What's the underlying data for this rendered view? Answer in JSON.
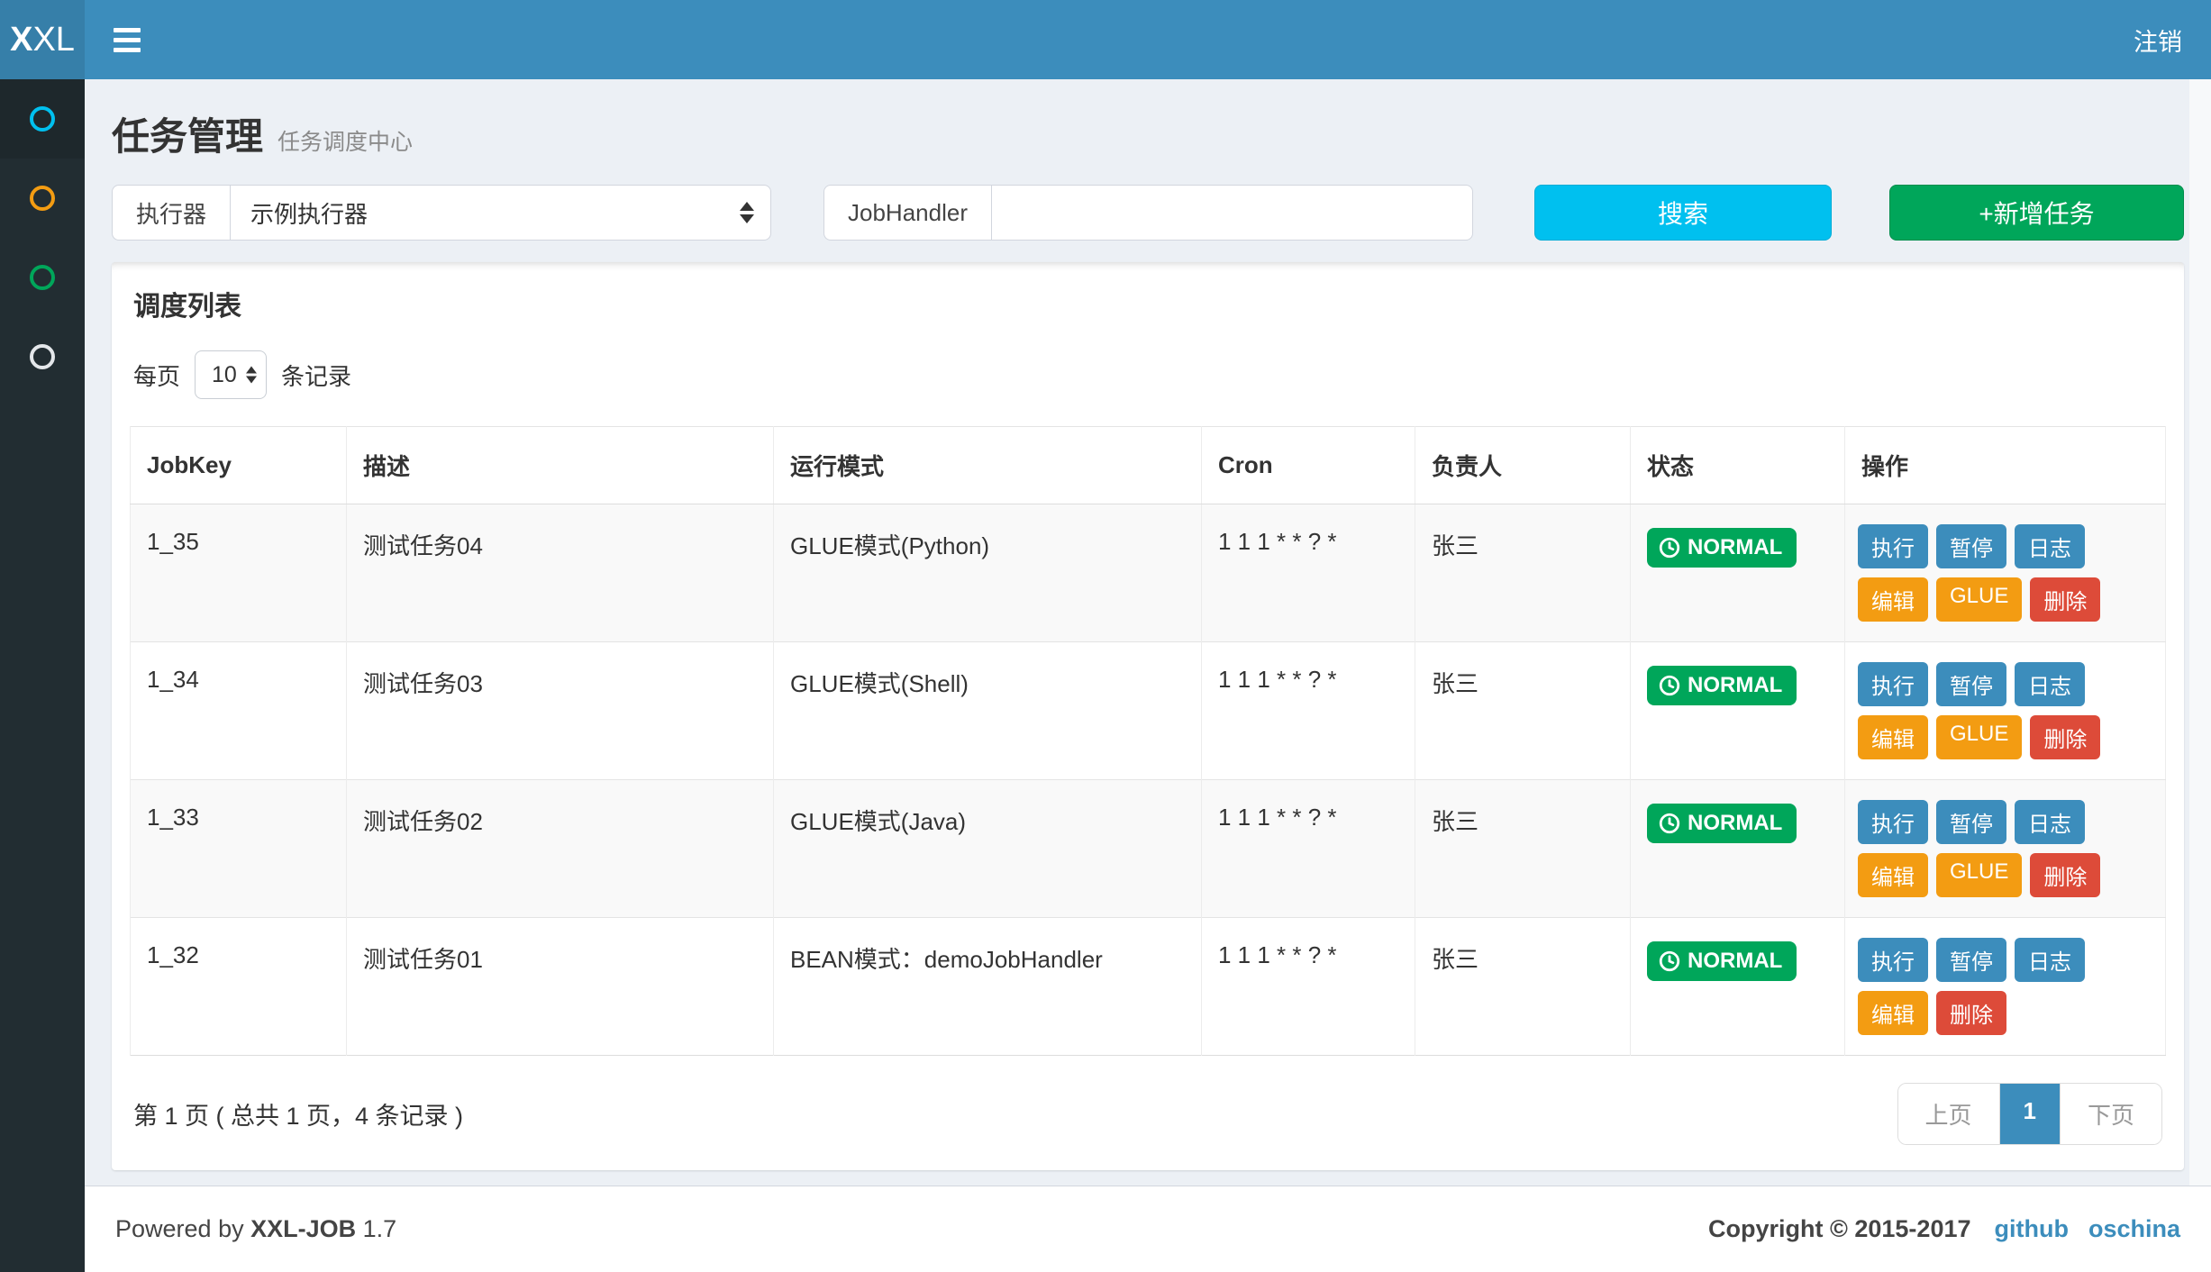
{
  "navbar": {
    "logo_bold": "X",
    "logo_rest": "XL",
    "logout_label": "注销"
  },
  "sidebar": {
    "items": [
      {
        "name": "task-manage",
        "color": "#00c0ef",
        "active": true
      },
      {
        "name": "dispatch-log",
        "color": "#f39c12",
        "active": false
      },
      {
        "name": "executor-manage",
        "color": "#00a65a",
        "active": false
      },
      {
        "name": "help",
        "color": "#e4e7ea",
        "active": false
      }
    ]
  },
  "header": {
    "title": "任务管理",
    "subtitle": "任务调度中心"
  },
  "filters": {
    "executor_label": "执行器",
    "executor_value": "示例执行器",
    "jobhandler_label": "JobHandler",
    "jobhandler_value": "",
    "search_label": "搜索",
    "add_label": "+新增任务"
  },
  "panel": {
    "title": "调度列表",
    "per_page_label_before": "每页",
    "per_page_value": "10",
    "per_page_label_after": "条记录"
  },
  "table": {
    "columns": [
      "JobKey",
      "描述",
      "运行模式",
      "Cron",
      "负责人",
      "状态",
      "操作"
    ],
    "rows": [
      {
        "jobkey": "1_35",
        "desc": "测试任务04",
        "mode": "GLUE模式(Python)",
        "cron": "1 1 1 * * ? *",
        "owner": "张三",
        "status": "NORMAL",
        "actions": [
          [
            {
              "name": "execute",
              "label": "执行",
              "color": "#3c8dbc"
            },
            {
              "name": "pause",
              "label": "暂停",
              "color": "#3c8dbc"
            },
            {
              "name": "log",
              "label": "日志",
              "color": "#3c8dbc"
            }
          ],
          [
            {
              "name": "edit",
              "label": "编辑",
              "color": "#f39c12"
            },
            {
              "name": "glue",
              "label": "GLUE",
              "color": "#f39c12"
            },
            {
              "name": "delete",
              "label": "删除",
              "color": "#dd4b39"
            }
          ]
        ]
      },
      {
        "jobkey": "1_34",
        "desc": "测试任务03",
        "mode": "GLUE模式(Shell)",
        "cron": "1 1 1 * * ? *",
        "owner": "张三",
        "status": "NORMAL",
        "actions": [
          [
            {
              "name": "execute",
              "label": "执行",
              "color": "#3c8dbc"
            },
            {
              "name": "pause",
              "label": "暂停",
              "color": "#3c8dbc"
            },
            {
              "name": "log",
              "label": "日志",
              "color": "#3c8dbc"
            }
          ],
          [
            {
              "name": "edit",
              "label": "编辑",
              "color": "#f39c12"
            },
            {
              "name": "glue",
              "label": "GLUE",
              "color": "#f39c12"
            },
            {
              "name": "delete",
              "label": "删除",
              "color": "#dd4b39"
            }
          ]
        ]
      },
      {
        "jobkey": "1_33",
        "desc": "测试任务02",
        "mode": "GLUE模式(Java)",
        "cron": "1 1 1 * * ? *",
        "owner": "张三",
        "status": "NORMAL",
        "actions": [
          [
            {
              "name": "execute",
              "label": "执行",
              "color": "#3c8dbc"
            },
            {
              "name": "pause",
              "label": "暂停",
              "color": "#3c8dbc"
            },
            {
              "name": "log",
              "label": "日志",
              "color": "#3c8dbc"
            }
          ],
          [
            {
              "name": "edit",
              "label": "编辑",
              "color": "#f39c12"
            },
            {
              "name": "glue",
              "label": "GLUE",
              "color": "#f39c12"
            },
            {
              "name": "delete",
              "label": "删除",
              "color": "#dd4b39"
            }
          ]
        ]
      },
      {
        "jobkey": "1_32",
        "desc": "测试任务01",
        "mode": "BEAN模式：demoJobHandler",
        "cron": "1 1 1 * * ? *",
        "owner": "张三",
        "status": "NORMAL",
        "actions": [
          [
            {
              "name": "execute",
              "label": "执行",
              "color": "#3c8dbc"
            },
            {
              "name": "pause",
              "label": "暂停",
              "color": "#3c8dbc"
            },
            {
              "name": "log",
              "label": "日志",
              "color": "#3c8dbc"
            }
          ],
          [
            {
              "name": "edit",
              "label": "编辑",
              "color": "#f39c12"
            },
            {
              "name": "delete",
              "label": "删除",
              "color": "#dd4b39"
            }
          ]
        ]
      }
    ]
  },
  "pagination": {
    "summary": "第 1 页 ( 总共 1 页，4 条记录 )",
    "prev_label": "上页",
    "page": "1",
    "next_label": "下页"
  },
  "footer": {
    "powered_by": "Powered by",
    "brand": "XXL-JOB",
    "version": "1.7",
    "copyright": "Copyright © 2015-2017",
    "links": [
      {
        "label": "github"
      },
      {
        "label": "oschina"
      }
    ]
  },
  "colors": {
    "navbar": "#3c8dbc",
    "logo_bg": "#367fa9",
    "sidebar_bg": "#222d32",
    "search_button": "#00c0ef",
    "add_button": "#00a65a",
    "status_normal": "#00a65a",
    "action_blue": "#3c8dbc",
    "action_orange": "#f39c12",
    "action_red": "#dd4b39",
    "link": "#3c8dbc"
  }
}
